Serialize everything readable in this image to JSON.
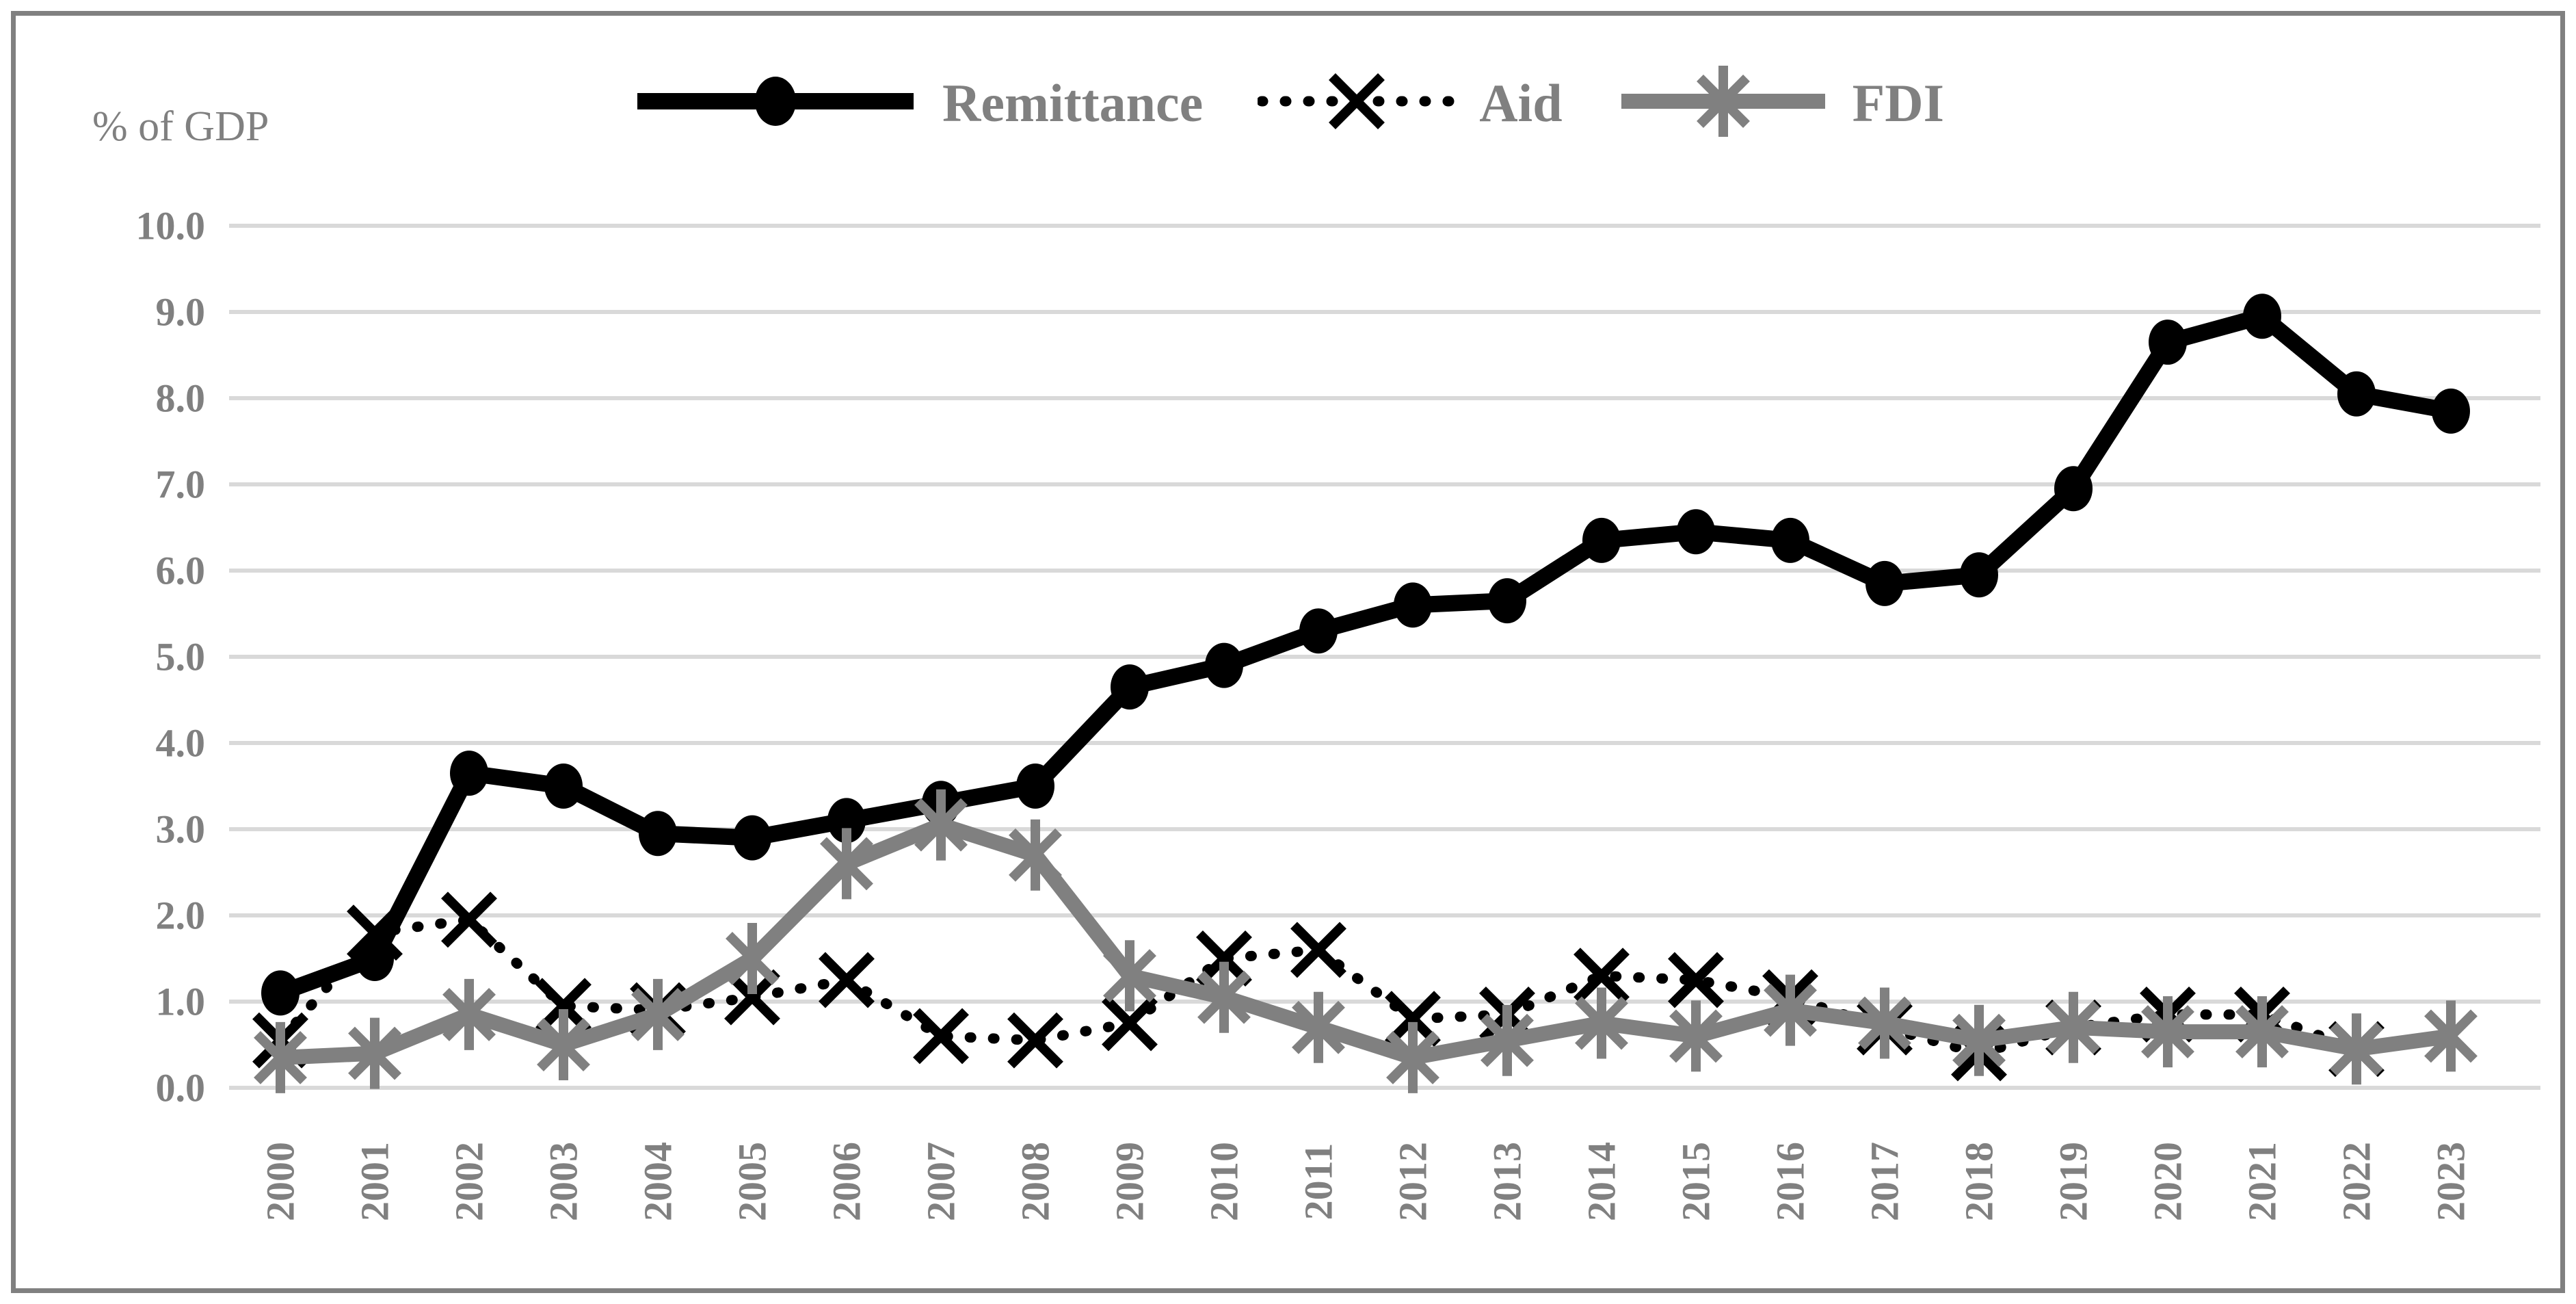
{
  "figure": {
    "y_axis_title": "% of GDP"
  },
  "legend": {
    "items": [
      {
        "label": "Remittance",
        "marker_icon": "filled-circle-marker",
        "line_style": "solid",
        "color": "#000000"
      },
      {
        "label": "Aid",
        "marker_icon": "x-marker",
        "line_style": "dotted",
        "color": "#000000"
      },
      {
        "label": "FDI",
        "marker_icon": "asterisk-marker",
        "line_style": "solid",
        "color": "#808080"
      }
    ]
  },
  "chart_data": {
    "type": "line",
    "title": "",
    "xlabel": "",
    "ylabel": "% of GDP",
    "ylim": [
      0,
      10
    ],
    "y_tick_step": 1.0,
    "y_ticks": [
      "10.0",
      "9.0",
      "8.0",
      "7.0",
      "6.0",
      "5.0",
      "4.0",
      "3.0",
      "2.0",
      "1.0",
      "0.0"
    ],
    "grid": "horizontal",
    "legend_position": "top",
    "categories": [
      2000,
      2001,
      2002,
      2003,
      2004,
      2005,
      2006,
      2007,
      2008,
      2009,
      2010,
      2011,
      2012,
      2013,
      2014,
      2015,
      2016,
      2017,
      2018,
      2019,
      2020,
      2021,
      2022,
      2023
    ],
    "series": [
      {
        "name": "Remittance",
        "color": "#000000",
        "line_style": "solid",
        "marker": "circle",
        "values": [
          1.1,
          1.5,
          3.65,
          3.5,
          2.95,
          2.9,
          3.1,
          3.3,
          3.5,
          4.65,
          4.9,
          5.3,
          5.6,
          5.65,
          6.35,
          6.45,
          6.35,
          5.85,
          5.95,
          6.95,
          8.65,
          8.95,
          8.05,
          7.85
        ]
      },
      {
        "name": "Aid",
        "color": "#000000",
        "line_style": "dotted",
        "marker": "x",
        "values": [
          0.55,
          1.8,
          1.95,
          0.95,
          0.9,
          1.05,
          1.25,
          0.6,
          0.55,
          0.75,
          1.5,
          1.6,
          0.8,
          0.85,
          1.3,
          1.25,
          1.05,
          0.7,
          0.4,
          0.7,
          0.85,
          0.85,
          0.45,
          null
        ]
      },
      {
        "name": "FDI",
        "color": "#808080",
        "line_style": "solid",
        "marker": "asterisk",
        "values": [
          0.35,
          0.4,
          0.85,
          0.5,
          0.85,
          1.5,
          2.6,
          3.05,
          2.7,
          1.3,
          1.05,
          0.7,
          0.35,
          0.55,
          0.75,
          0.6,
          0.9,
          0.75,
          0.55,
          0.7,
          0.65,
          0.65,
          0.45,
          0.6
        ]
      }
    ]
  },
  "colors": {
    "grid": "#d9d9d9",
    "axis_text": "#808080",
    "border": "#808080",
    "background": "#ffffff"
  }
}
